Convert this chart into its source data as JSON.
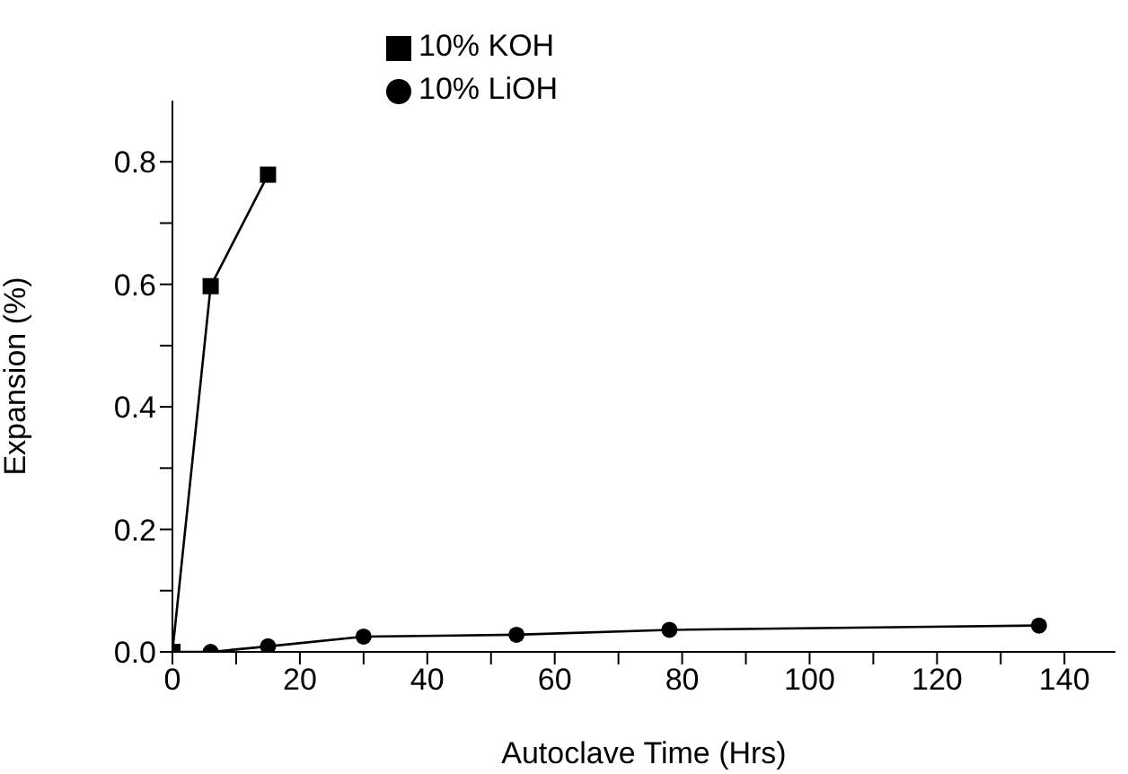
{
  "chart_data": {
    "type": "line",
    "xlabel": "Autoclave Time (Hrs)",
    "ylabel": "Expansion (%)",
    "xlim": [
      0,
      148
    ],
    "xticks": [
      0,
      {
        "value": 10,
        "label": null
      },
      20,
      {
        "value": 30,
        "label": null
      },
      40,
      {
        "value": 50,
        "label": null
      },
      60,
      {
        "value": 70,
        "label": null
      },
      80,
      {
        "value": 90,
        "label": null
      },
      100,
      {
        "value": 110,
        "label": null
      },
      120,
      {
        "value": 130,
        "label": null
      },
      140
    ],
    "ylim": [
      0,
      0.9
    ],
    "yticks": [
      {
        "value": 0,
        "label": "0.0"
      },
      {
        "value": 0.1,
        "label": null
      },
      0.2,
      {
        "value": 0.3,
        "label": null
      },
      0.4,
      {
        "value": 0.5,
        "label": null
      },
      0.6,
      {
        "value": 0.7,
        "label": null
      },
      0.8
    ],
    "legend": "top",
    "grid": false,
    "series": [
      {
        "name": "10% KOH",
        "color": "#000000",
        "marker": "square",
        "x": [
          0,
          6,
          15
        ],
        "values": [
          0,
          0.597,
          0.779
        ]
      },
      {
        "name": "10% LiOH",
        "color": "#000000",
        "marker": "circle",
        "x": [
          0,
          6,
          15,
          30,
          54,
          78,
          136
        ],
        "values": [
          0,
          0,
          0.009,
          0.025,
          0.028,
          0.036,
          0.043
        ]
      }
    ]
  }
}
